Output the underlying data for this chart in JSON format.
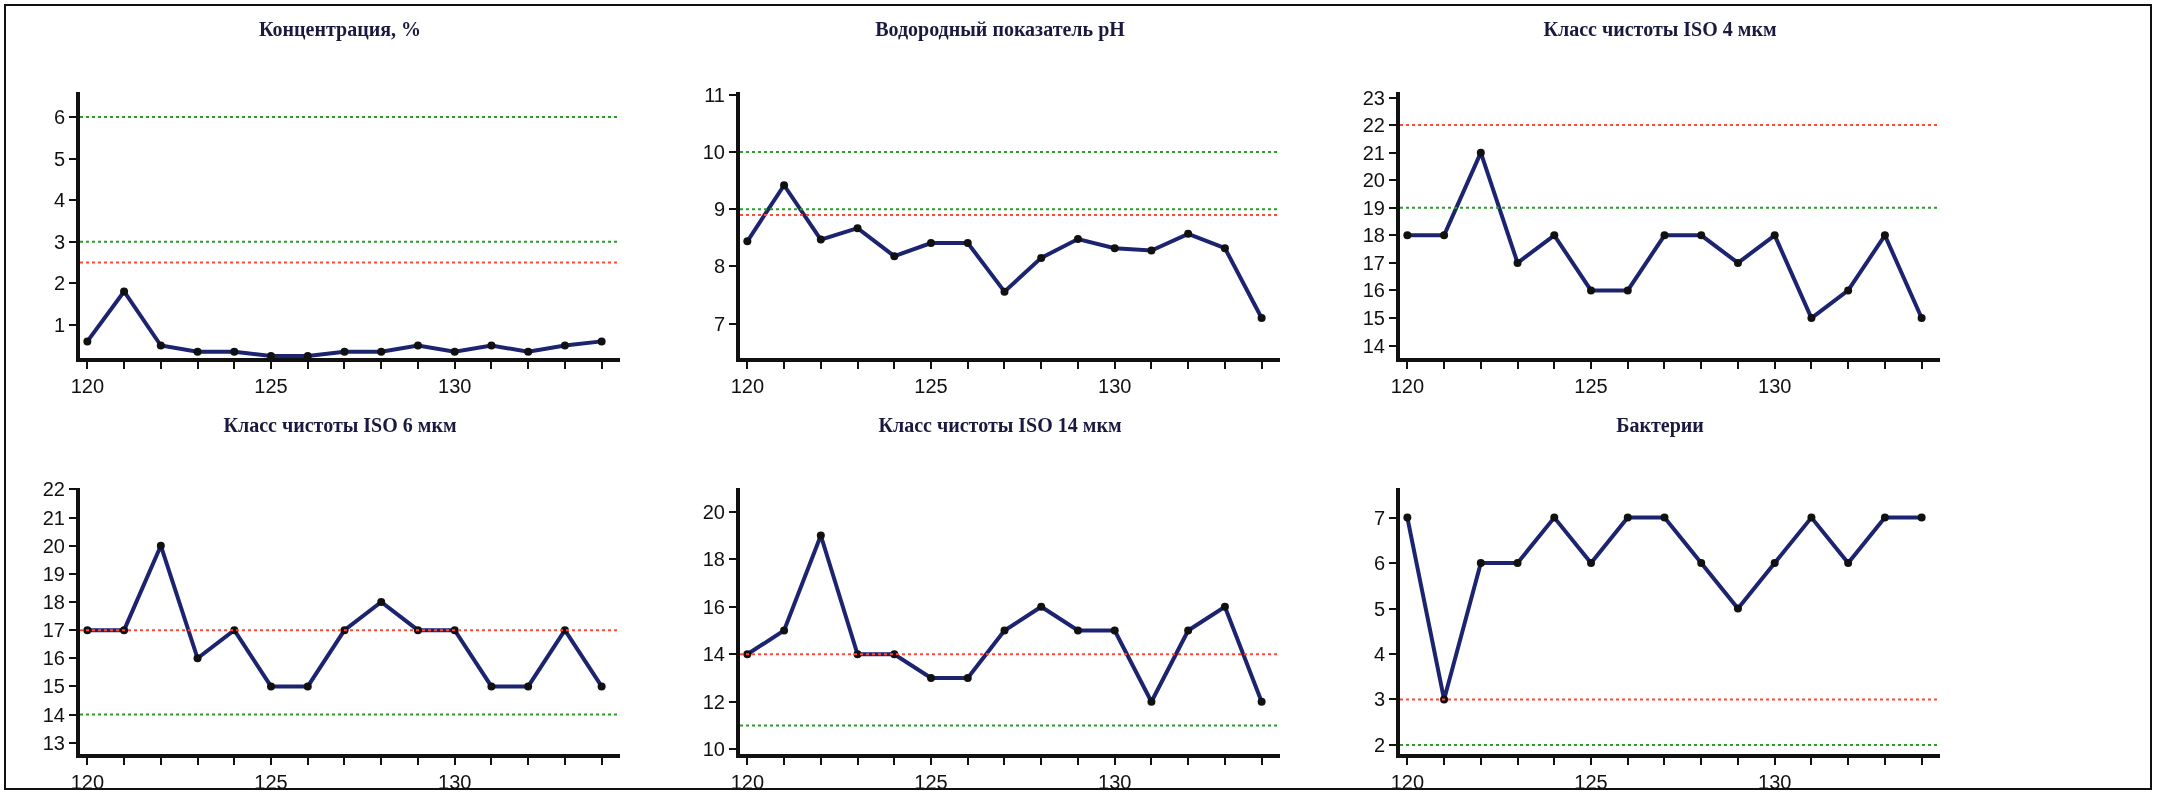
{
  "chart_data": [
    {
      "type": "line",
      "title": "Концентрация, %",
      "x": [
        120,
        121,
        122,
        123,
        124,
        125,
        126,
        127,
        128,
        129,
        130,
        131,
        132,
        133,
        134
      ],
      "series": [
        {
          "color": "#1c2470",
          "values": [
            0.6,
            1.8,
            0.5,
            0.35,
            0.35,
            0.25,
            0.25,
            0.35,
            0.35,
            0.5,
            0.35,
            0.5,
            0.35,
            0.5,
            0.6
          ]
        }
      ],
      "xlim": [
        119.8,
        134.5
      ],
      "xticks": [
        120,
        {
          "value": 121,
          "label": null
        },
        {
          "value": 122,
          "label": null
        },
        {
          "value": 123,
          "label": null
        },
        {
          "value": 124,
          "label": null
        },
        125,
        {
          "value": 126,
          "label": null
        },
        {
          "value": 127,
          "label": null
        },
        {
          "value": 128,
          "label": null
        },
        {
          "value": 129,
          "label": null
        },
        130,
        {
          "value": 131,
          "label": null
        },
        {
          "value": 132,
          "label": null
        },
        {
          "value": 133,
          "label": null
        },
        {
          "value": 134,
          "label": null
        }
      ],
      "ylim": [
        0.2,
        6.6
      ],
      "yticks": [
        1,
        2,
        3,
        4,
        5,
        6
      ],
      "ref_lines": [
        {
          "axis": "y",
          "value": 6,
          "color": "#2e9b2e",
          "line_style": "dotted"
        },
        {
          "axis": "y",
          "value": 3,
          "color": "#2e9b2e",
          "line_style": "dotted"
        },
        {
          "axis": "y",
          "value": 2.5,
          "color": "#ff4a3a",
          "line_style": "dotted"
        }
      ],
      "marker": "circle",
      "line_style": "solid"
    },
    {
      "type": "line",
      "title": "Водородный показатель pH",
      "x": [
        120,
        121,
        122,
        123,
        124,
        125,
        126,
        127,
        128,
        129,
        130,
        131,
        132,
        133,
        134
      ],
      "series": [
        {
          "color": "#1c2470",
          "values": [
            8.44,
            9.42,
            8.47,
            8.67,
            8.18,
            8.41,
            8.41,
            7.56,
            8.15,
            8.48,
            8.32,
            8.28,
            8.57,
            8.32,
            7.1
          ]
        }
      ],
      "xlim": [
        119.8,
        134.5
      ],
      "xticks": [
        120,
        {
          "value": 121,
          "label": null
        },
        {
          "value": 122,
          "label": null
        },
        {
          "value": 123,
          "label": null
        },
        {
          "value": 124,
          "label": null
        },
        125,
        {
          "value": 126,
          "label": null
        },
        {
          "value": 127,
          "label": null
        },
        {
          "value": 128,
          "label": null
        },
        {
          "value": 129,
          "label": null
        },
        130,
        {
          "value": 131,
          "label": null
        },
        {
          "value": 132,
          "label": null
        },
        {
          "value": 133,
          "label": null
        },
        {
          "value": 134,
          "label": null
        }
      ],
      "ylim": [
        6.4,
        11.05
      ],
      "yticks": [
        7,
        8,
        9,
        10,
        11
      ],
      "ref_lines": [
        {
          "axis": "y",
          "value": 10,
          "color": "#2e9b2e",
          "line_style": "dotted"
        },
        {
          "axis": "y",
          "value": 9,
          "color": "#2e9b2e",
          "line_style": "dotted"
        },
        {
          "axis": "y",
          "value": 8.9,
          "color": "#ff4a3a",
          "line_style": "dotted"
        }
      ],
      "marker": "circle",
      "line_style": "solid"
    },
    {
      "type": "line",
      "title": "Класс чистоты ISO 4 мкм",
      "x": [
        120,
        121,
        122,
        123,
        124,
        125,
        126,
        127,
        128,
        129,
        130,
        131,
        132,
        133,
        134
      ],
      "series": [
        {
          "color": "#1c2470",
          "values": [
            18,
            18,
            21,
            17,
            18,
            16,
            16,
            18,
            18,
            17,
            18,
            15,
            16,
            18,
            15
          ]
        }
      ],
      "xlim": [
        119.8,
        134.5
      ],
      "xticks": [
        120,
        {
          "value": 121,
          "label": null
        },
        {
          "value": 122,
          "label": null
        },
        {
          "value": 123,
          "label": null
        },
        {
          "value": 124,
          "label": null
        },
        125,
        {
          "value": 126,
          "label": null
        },
        {
          "value": 127,
          "label": null
        },
        {
          "value": 128,
          "label": null
        },
        {
          "value": 129,
          "label": null
        },
        130,
        {
          "value": 131,
          "label": null
        },
        {
          "value": 132,
          "label": null
        },
        {
          "value": 133,
          "label": null
        },
        {
          "value": 134,
          "label": null
        }
      ],
      "ylim": [
        13.55,
        23.2
      ],
      "yticks": [
        14,
        15,
        16,
        17,
        18,
        19,
        20,
        21,
        22,
        23
      ],
      "ref_lines": [
        {
          "axis": "y",
          "value": 22,
          "color": "#ff4a3a",
          "line_style": "dotted"
        },
        {
          "axis": "y",
          "value": 19,
          "color": "#2e9b2e",
          "line_style": "dotted"
        }
      ],
      "marker": "circle",
      "line_style": "solid"
    },
    {
      "type": "line",
      "title": "Класс чистоты ISO 6 мкм",
      "x": [
        120,
        121,
        122,
        123,
        124,
        125,
        126,
        127,
        128,
        129,
        130,
        131,
        132,
        133,
        134
      ],
      "series": [
        {
          "color": "#1c2470",
          "values": [
            17,
            17,
            20,
            16,
            17,
            15,
            15,
            17,
            18,
            17,
            17,
            15,
            15,
            17,
            15
          ]
        }
      ],
      "xlim": [
        119.8,
        134.5
      ],
      "xticks": [
        120,
        {
          "value": 121,
          "label": null
        },
        {
          "value": 122,
          "label": null
        },
        {
          "value": 123,
          "label": null
        },
        {
          "value": 124,
          "label": null
        },
        125,
        {
          "value": 126,
          "label": null
        },
        {
          "value": 127,
          "label": null
        },
        {
          "value": 128,
          "label": null
        },
        {
          "value": 129,
          "label": null
        },
        130,
        {
          "value": 131,
          "label": null
        },
        {
          "value": 132,
          "label": null
        },
        {
          "value": 133,
          "label": null
        },
        {
          "value": 134,
          "label": null
        }
      ],
      "ylim": [
        12.6,
        22.05
      ],
      "yticks": [
        13,
        14,
        15,
        16,
        17,
        18,
        19,
        20,
        21,
        22
      ],
      "ref_lines": [
        {
          "axis": "y",
          "value": 17,
          "color": "#ff4a3a",
          "line_style": "dotted"
        },
        {
          "axis": "y",
          "value": 14,
          "color": "#2e9b2e",
          "line_style": "dotted"
        }
      ],
      "marker": "circle",
      "line_style": "solid"
    },
    {
      "type": "line",
      "title": "Класс чистоты ISO 14 мкм",
      "x": [
        120,
        121,
        122,
        123,
        124,
        125,
        126,
        127,
        128,
        129,
        130,
        131,
        132,
        133,
        134
      ],
      "series": [
        {
          "color": "#1c2470",
          "values": [
            14,
            15,
            19,
            14,
            14,
            13,
            13,
            15,
            16,
            15,
            15,
            12,
            15,
            16,
            12
          ]
        }
      ],
      "xlim": [
        119.8,
        134.5
      ],
      "xticks": [
        120,
        {
          "value": 121,
          "label": null
        },
        {
          "value": 122,
          "label": null
        },
        {
          "value": 123,
          "label": null
        },
        {
          "value": 124,
          "label": null
        },
        125,
        {
          "value": 126,
          "label": null
        },
        {
          "value": 127,
          "label": null
        },
        {
          "value": 128,
          "label": null
        },
        {
          "value": 129,
          "label": null
        },
        130,
        {
          "value": 131,
          "label": null
        },
        {
          "value": 132,
          "label": null
        },
        {
          "value": 133,
          "label": null
        },
        {
          "value": 134,
          "label": null
        }
      ],
      "ylim": [
        9.8,
        21
      ],
      "yticks": [
        10,
        12,
        14,
        16,
        18,
        20
      ],
      "ref_lines": [
        {
          "axis": "y",
          "value": 14,
          "color": "#ff4a3a",
          "line_style": "dotted"
        },
        {
          "axis": "y",
          "value": 11,
          "color": "#2e9b2e",
          "line_style": "dotted"
        }
      ],
      "marker": "circle",
      "line_style": "solid"
    },
    {
      "type": "line",
      "title": "Бактерии",
      "x": [
        120,
        121,
        122,
        123,
        124,
        125,
        126,
        127,
        128,
        129,
        130,
        131,
        132,
        133,
        134
      ],
      "series": [
        {
          "color": "#1c2470",
          "values": [
            7,
            3,
            6,
            6,
            7,
            6,
            7,
            7,
            6,
            5,
            6,
            7,
            6,
            7,
            7
          ]
        }
      ],
      "xlim": [
        119.8,
        134.5
      ],
      "xticks": [
        120,
        {
          "value": 121,
          "label": null
        },
        {
          "value": 122,
          "label": null
        },
        {
          "value": 123,
          "label": null
        },
        {
          "value": 124,
          "label": null
        },
        125,
        {
          "value": 126,
          "label": null
        },
        {
          "value": 127,
          "label": null
        },
        {
          "value": 128,
          "label": null
        },
        {
          "value": 129,
          "label": null
        },
        130,
        {
          "value": 131,
          "label": null
        },
        {
          "value": 132,
          "label": null
        },
        {
          "value": 133,
          "label": null
        },
        {
          "value": 134,
          "label": null
        }
      ],
      "ylim": [
        1.8,
        7.65
      ],
      "yticks": [
        2,
        3,
        4,
        5,
        6,
        7
      ],
      "ref_lines": [
        {
          "axis": "y",
          "value": 3,
          "color": "#ff4a3a",
          "line_style": "dotted"
        },
        {
          "axis": "y",
          "value": 2,
          "color": "#2e9b2e",
          "line_style": "dotted"
        }
      ],
      "marker": "circle",
      "line_style": "solid"
    }
  ]
}
